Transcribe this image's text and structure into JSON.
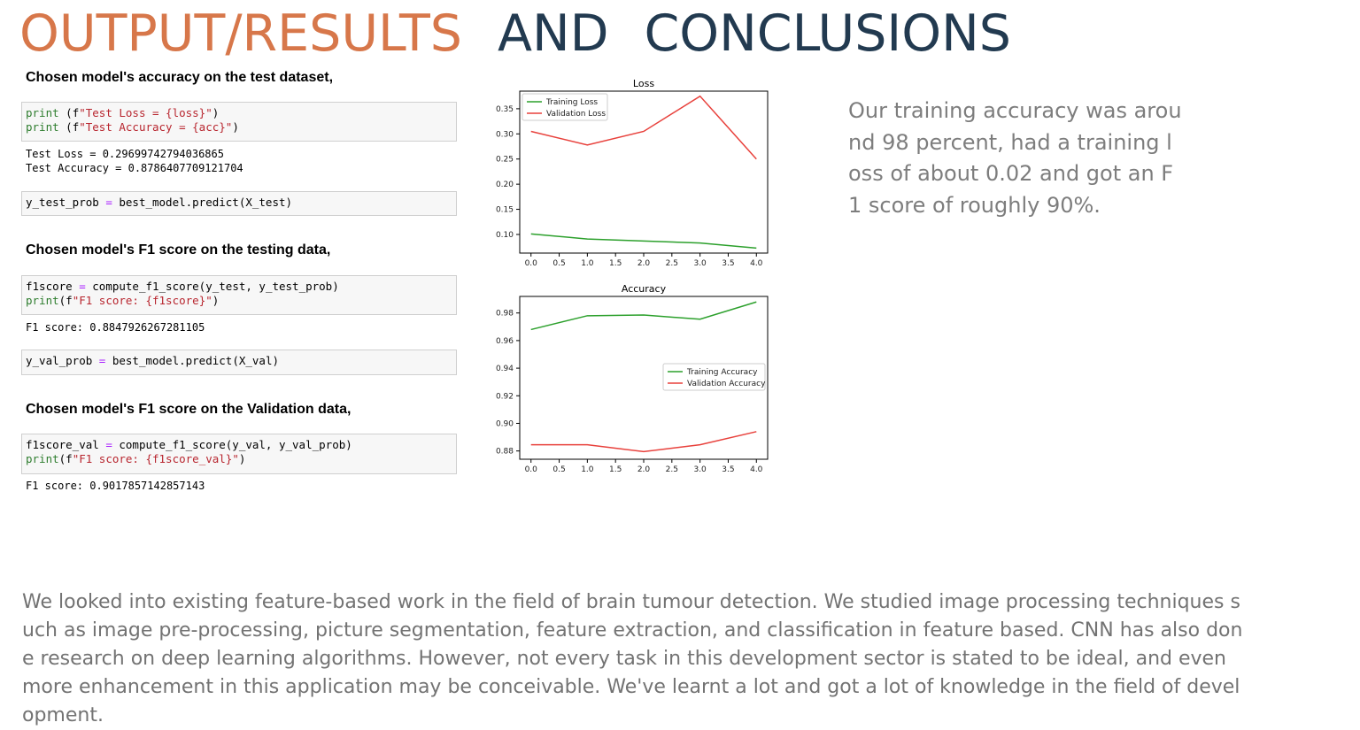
{
  "title": {
    "part1": "OUTPUT/RESULTS",
    "part2": "AND",
    "part3": "CONCLUSIONS"
  },
  "sections": {
    "accuracy_heading": "Chosen model's accuracy on the test dataset,",
    "f1_test_heading": "Chosen model's F1 score on the testing data,",
    "f1_val_heading": "Chosen model's F1 score on the Validation data,"
  },
  "code": {
    "cell1": {
      "line1_kw": "print",
      "line1_a": " (f",
      "line1_str": "\"Test Loss = {loss}\"",
      "line1_b": ")",
      "line2_kw": "print",
      "line2_a": " (f",
      "line2_str": "\"Test Accuracy = {acc}\"",
      "line2_b": ")"
    },
    "out1": "Test Loss = 0.29699742794036865\nTest Accuracy = 0.8786407709121704",
    "cell2": {
      "a": "y_test_prob ",
      "op": "=",
      "b": " best_model.predict(X_test)"
    },
    "cell3": {
      "l1a": "f1score ",
      "l1op": "=",
      "l1b": " compute_f1_score(y_test, y_test_prob)",
      "l2kw": "print",
      "l2a": "(f",
      "l2str": "\"F1 score: {f1score}\"",
      "l2b": ")"
    },
    "out3": "F1 score: 0.8847926267281105",
    "cell4": {
      "a": "y_val_prob ",
      "op": "=",
      "b": " best_model.predict(X_val)"
    },
    "cell5": {
      "l1a": "f1score_val ",
      "l1op": "=",
      "l1b": " compute_f1_score(y_val, y_val_prob)",
      "l2kw": "print",
      "l2a": "(f",
      "l2str": "\"F1 score: {f1score_val}\"",
      "l2b": ")"
    },
    "out5": "F1 score: 0.9017857142857143"
  },
  "side_text": "Our training accuracy was around 98 percent, had a training loss of about 0.02 and got an F1 score of roughly 90%.",
  "bottom_text": "We looked into existing feature-based work in the field of brain tumour detection. We studied image processing techniques such as image pre-processing, picture segmentation, feature extraction, and classification in feature based. CNN has also done research on deep learning algorithms. However, not every task in this development sector is stated to be ideal, and even more enhancement in this application may be conceivable. We've learnt a lot and got a lot of knowledge in the field of development.",
  "colors": {
    "train": "#2ca02c",
    "val": "#e8413c",
    "title_accent": "#d7774a",
    "title_dark": "#223a50"
  },
  "chart_data": [
    {
      "type": "line",
      "title": "Loss",
      "x": [
        0,
        1,
        2,
        3,
        4
      ],
      "xticks": [
        "0.0",
        "0.5",
        "1.0",
        "1.5",
        "2.0",
        "2.5",
        "3.0",
        "3.5",
        "4.0"
      ],
      "yticks": [
        "0.10",
        "0.15",
        "0.20",
        "0.25",
        "0.30",
        "0.35"
      ],
      "xlim": [
        -0.2,
        4.2
      ],
      "ylim": [
        0.063,
        0.385
      ],
      "legend_position": "upper-left",
      "series": [
        {
          "name": "Training Loss",
          "values": [
            0.101,
            0.091,
            0.087,
            0.083,
            0.073
          ]
        },
        {
          "name": "Validation Loss",
          "values": [
            0.305,
            0.278,
            0.305,
            0.375,
            0.25
          ]
        }
      ]
    },
    {
      "type": "line",
      "title": "Accuracy",
      "x": [
        0,
        1,
        2,
        3,
        4
      ],
      "xticks": [
        "0.0",
        "0.5",
        "1.0",
        "1.5",
        "2.0",
        "2.5",
        "3.0",
        "3.5",
        "4.0"
      ],
      "yticks": [
        "0.88",
        "0.90",
        "0.92",
        "0.94",
        "0.96",
        "0.98"
      ],
      "xlim": [
        -0.2,
        4.2
      ],
      "ylim": [
        0.874,
        0.992
      ],
      "legend_position": "center-right",
      "series": [
        {
          "name": "Training Accuracy",
          "values": [
            0.968,
            0.978,
            0.9785,
            0.9755,
            0.988
          ]
        },
        {
          "name": "Validation Accuracy",
          "values": [
            0.8845,
            0.8845,
            0.8795,
            0.8845,
            0.894
          ]
        }
      ]
    }
  ]
}
